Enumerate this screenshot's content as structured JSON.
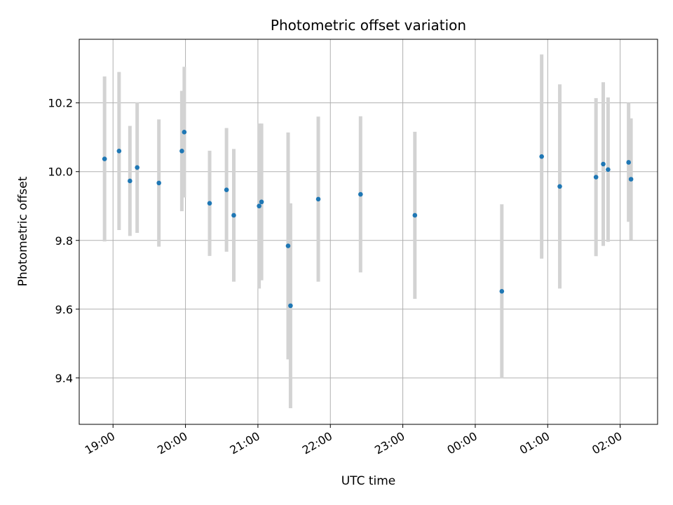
{
  "chart_data": {
    "type": "scatter",
    "title": "Photometric offset variation",
    "xlabel": "UTC time",
    "ylabel": "Photometric offset",
    "x_ticks": [
      "19:00",
      "20:00",
      "21:00",
      "22:00",
      "23:00",
      "00:00",
      "01:00",
      "02:00"
    ],
    "y_ticks": [
      "9.4",
      "9.6",
      "9.8",
      "10.0",
      "10.2"
    ],
    "xlim": [
      "18:32",
      "02:31"
    ],
    "ylim": [
      9.265,
      10.385
    ],
    "grid": true,
    "marker_color": "#1f77b4",
    "errorbar_color": "#d3d3d3",
    "series": [
      {
        "x": [
          "18:53",
          "19:05",
          "19:14",
          "19:20",
          "19:38",
          "19:57",
          "19:59",
          "20:20",
          "20:34",
          "20:40",
          "21:01",
          "21:03",
          "21:25",
          "21:27",
          "21:50",
          "22:25",
          "23:10",
          "00:22",
          "00:55",
          "01:10",
          "01:40",
          "01:46",
          "01:50",
          "02:07",
          "02:09"
        ],
        "y": [
          10.037,
          10.06,
          9.973,
          10.012,
          9.967,
          10.06,
          10.115,
          9.908,
          9.947,
          9.873,
          9.9,
          9.912,
          9.784,
          9.61,
          9.92,
          9.934,
          9.873,
          9.652,
          10.044,
          9.957,
          9.984,
          10.022,
          10.006,
          10.027,
          9.978
        ],
        "yerr": [
          0.24,
          0.23,
          0.16,
          0.19,
          0.185,
          0.175,
          0.19,
          0.153,
          0.18,
          0.193,
          0.24,
          0.228,
          0.33,
          0.298,
          0.24,
          0.227,
          0.243,
          0.253,
          0.297,
          0.297,
          0.23,
          0.238,
          0.21,
          0.173,
          0.177
        ]
      }
    ]
  }
}
